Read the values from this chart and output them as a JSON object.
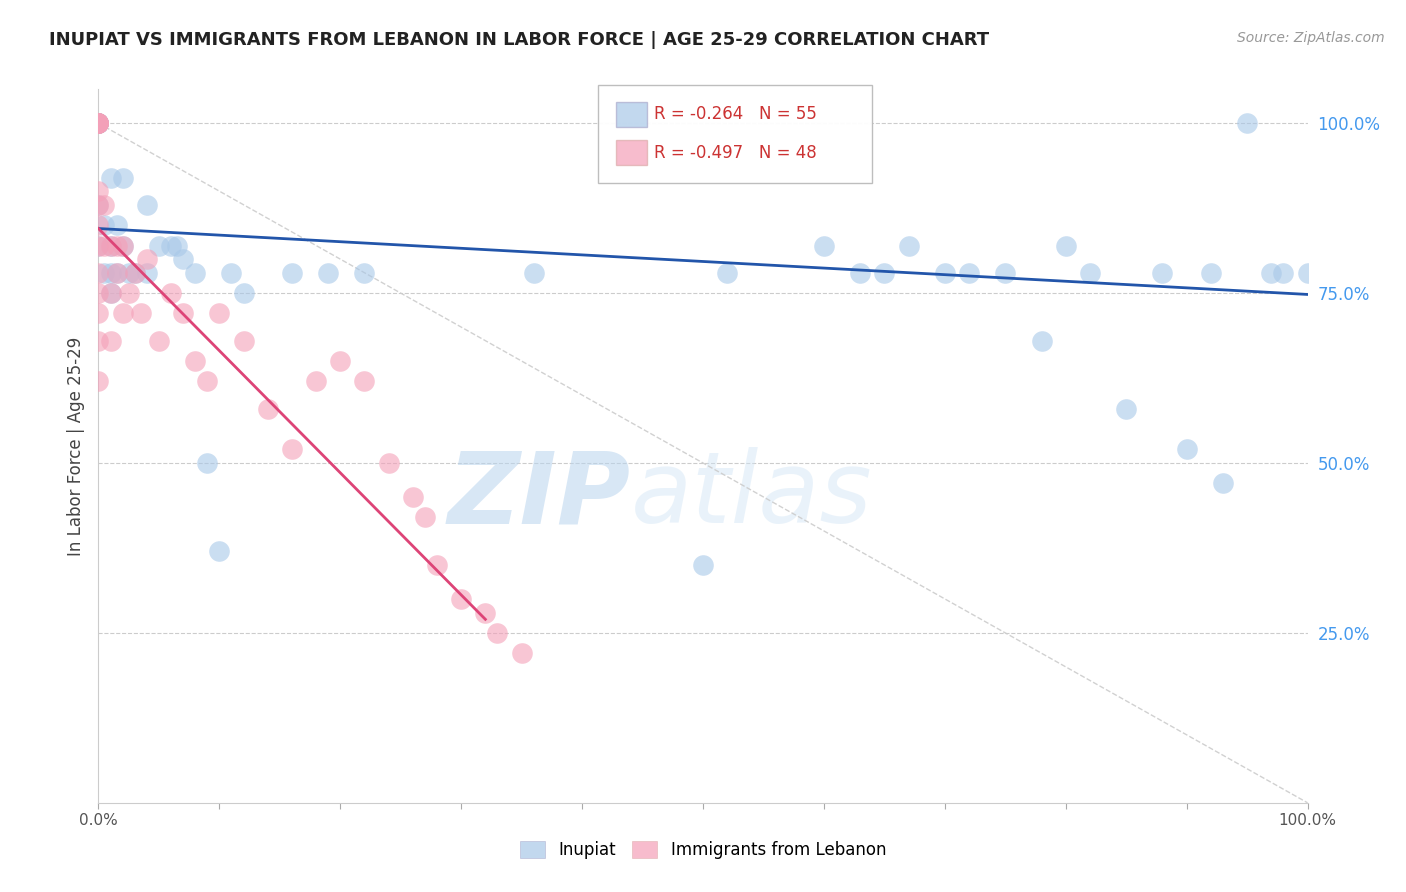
{
  "title": "INUPIAT VS IMMIGRANTS FROM LEBANON IN LABOR FORCE | AGE 25-29 CORRELATION CHART",
  "source": "Source: ZipAtlas.com",
  "ylabel": "In Labor Force | Age 25-29",
  "xlim": [
    0.0,
    1.0
  ],
  "ylim": [
    0.0,
    1.05
  ],
  "y_tick_labels": [
    "100.0%",
    "75.0%",
    "50.0%",
    "25.0%"
  ],
  "y_tick_positions": [
    1.0,
    0.75,
    0.5,
    0.25
  ],
  "grid_color": "#cccccc",
  "background_color": "#ffffff",
  "legend_r1": "-0.264",
  "legend_n1": "55",
  "legend_r2": "-0.497",
  "legend_n2": "48",
  "blue_color": "#a8c8e8",
  "pink_color": "#f4a0b8",
  "line_blue": "#2255aa",
  "line_pink": "#dd4477",
  "line_dashed": "#cccccc",
  "watermark_zip": "ZIP",
  "watermark_atlas": "atlas",
  "inupiat_x": [
    0.0,
    0.0,
    0.0,
    0.0,
    0.0,
    0.0,
    0.0,
    0.005,
    0.005,
    0.01,
    0.01,
    0.01,
    0.01,
    0.015,
    0.015,
    0.02,
    0.02,
    0.025,
    0.03,
    0.04,
    0.04,
    0.05,
    0.06,
    0.065,
    0.07,
    0.08,
    0.09,
    0.1,
    0.11,
    0.12,
    0.16,
    0.19,
    0.22,
    0.36,
    0.5,
    0.52,
    0.6,
    0.63,
    0.65,
    0.67,
    0.7,
    0.72,
    0.75,
    0.78,
    0.8,
    0.82,
    0.85,
    0.88,
    0.9,
    0.92,
    0.93,
    0.95,
    0.97,
    0.98,
    1.0
  ],
  "inupiat_y": [
    1.0,
    1.0,
    1.0,
    1.0,
    1.0,
    0.88,
    0.82,
    0.85,
    0.78,
    0.92,
    0.82,
    0.78,
    0.75,
    0.85,
    0.78,
    0.92,
    0.82,
    0.78,
    0.78,
    0.88,
    0.78,
    0.82,
    0.82,
    0.82,
    0.8,
    0.78,
    0.5,
    0.37,
    0.78,
    0.75,
    0.78,
    0.78,
    0.78,
    0.78,
    0.35,
    0.78,
    0.82,
    0.78,
    0.78,
    0.82,
    0.78,
    0.78,
    0.78,
    0.68,
    0.82,
    0.78,
    0.58,
    0.78,
    0.52,
    0.78,
    0.47,
    1.0,
    0.78,
    0.78,
    0.78
  ],
  "lebanon_x": [
    0.0,
    0.0,
    0.0,
    0.0,
    0.0,
    0.0,
    0.0,
    0.0,
    0.0,
    0.0,
    0.0,
    0.0,
    0.0,
    0.0,
    0.0,
    0.005,
    0.005,
    0.01,
    0.01,
    0.01,
    0.015,
    0.015,
    0.02,
    0.02,
    0.025,
    0.03,
    0.035,
    0.04,
    0.05,
    0.06,
    0.07,
    0.08,
    0.09,
    0.1,
    0.12,
    0.14,
    0.16,
    0.18,
    0.2,
    0.22,
    0.24,
    0.26,
    0.27,
    0.28,
    0.3,
    0.32,
    0.33,
    0.35
  ],
  "lebanon_y": [
    1.0,
    1.0,
    1.0,
    1.0,
    1.0,
    1.0,
    0.9,
    0.88,
    0.85,
    0.82,
    0.78,
    0.75,
    0.72,
    0.68,
    0.62,
    0.88,
    0.82,
    0.82,
    0.75,
    0.68,
    0.82,
    0.78,
    0.82,
    0.72,
    0.75,
    0.78,
    0.72,
    0.8,
    0.68,
    0.75,
    0.72,
    0.65,
    0.62,
    0.72,
    0.68,
    0.58,
    0.52,
    0.62,
    0.65,
    0.62,
    0.5,
    0.45,
    0.42,
    0.35,
    0.3,
    0.28,
    0.25,
    0.22
  ]
}
